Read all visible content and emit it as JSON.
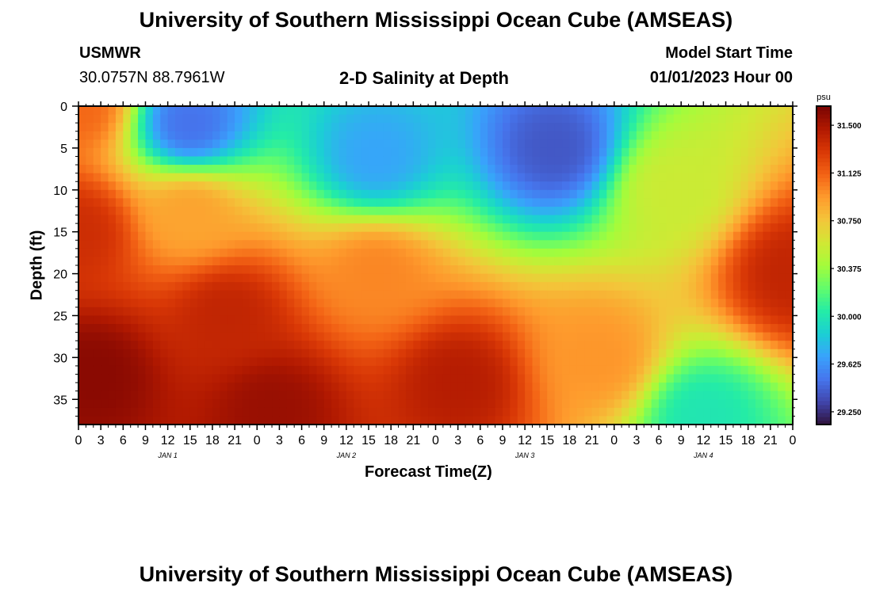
{
  "page": {
    "title": "University of Southern Mississippi Ocean Cube (AMSEAS)",
    "station": "USMWR",
    "location": "30.0757N  88.7961W",
    "subtitle": "2-D Salinity at Depth",
    "model_start_label": "Model Start Time",
    "model_start_value": "01/01/2023 Hour 00",
    "footer_title": "University of Southern Mississippi Ocean Cube (AMSEAS)"
  },
  "chart_data": {
    "type": "heatmap",
    "title": "2-D Salinity at Depth",
    "xlabel": "Forecast Time(Z)",
    "ylabel": "Depth (ft)",
    "x_hours": [
      0,
      96
    ],
    "x_tick_labels": [
      "0",
      "3",
      "6",
      "9",
      "12",
      "15",
      "18",
      "21",
      "0",
      "3",
      "6",
      "9",
      "12",
      "15",
      "18",
      "21",
      "0",
      "3",
      "6",
      "9",
      "12",
      "15",
      "18",
      "21",
      "0",
      "3",
      "6",
      "9",
      "12",
      "15",
      "18",
      "21",
      "0"
    ],
    "date_labels": [
      {
        "label": "JAN 1",
        "hour": 12
      },
      {
        "label": "JAN 2",
        "hour": 36
      },
      {
        "label": "JAN 3",
        "hour": 60
      },
      {
        "label": "JAN 4",
        "hour": 84
      }
    ],
    "y_ticks": [
      0,
      5,
      10,
      15,
      20,
      25,
      30,
      35
    ],
    "ylim": [
      0,
      38
    ],
    "y_inverted": true,
    "colorbar": {
      "unit": "psu",
      "range": [
        29.15,
        31.65
      ],
      "ticks": [
        "31.500",
        "31.125",
        "30.750",
        "30.375",
        "30.000",
        "29.625",
        "29.250"
      ]
    },
    "colormap": [
      "#30123b",
      "#4145ab",
      "#4675ed",
      "#39a2fc",
      "#1bcfd4",
      "#24eca6",
      "#61fc6c",
      "#a4fc3b",
      "#d1e834",
      "#f3c63a",
      "#fe9b2d",
      "#f36315",
      "#d93806",
      "#b11901",
      "#7a0403"
    ],
    "features": [
      {
        "hour": 0,
        "depth": 0,
        "salinity": 31.1
      },
      {
        "hour": 0,
        "depth": 15,
        "salinity": 31.35
      },
      {
        "hour": 2,
        "depth": 32,
        "salinity": 31.6
      },
      {
        "hour": 15,
        "depth": 2,
        "salinity": 29.5
      },
      {
        "hour": 15,
        "depth": 13,
        "salinity": 30.9
      },
      {
        "hour": 20,
        "depth": 25,
        "salinity": 31.4
      },
      {
        "hour": 26,
        "depth": 36,
        "salinity": 31.55
      },
      {
        "hour": 40,
        "depth": 6,
        "salinity": 29.7
      },
      {
        "hour": 40,
        "depth": 20,
        "salinity": 31.0
      },
      {
        "hour": 51,
        "depth": 33,
        "salinity": 31.45
      },
      {
        "hour": 64,
        "depth": 5,
        "salinity": 29.4
      },
      {
        "hour": 70,
        "depth": 30,
        "salinity": 30.95
      },
      {
        "hour": 84,
        "depth": 37,
        "salinity": 30.0
      },
      {
        "hour": 80,
        "depth": 10,
        "salinity": 30.55
      },
      {
        "hour": 96,
        "depth": 20,
        "salinity": 31.4
      }
    ]
  }
}
